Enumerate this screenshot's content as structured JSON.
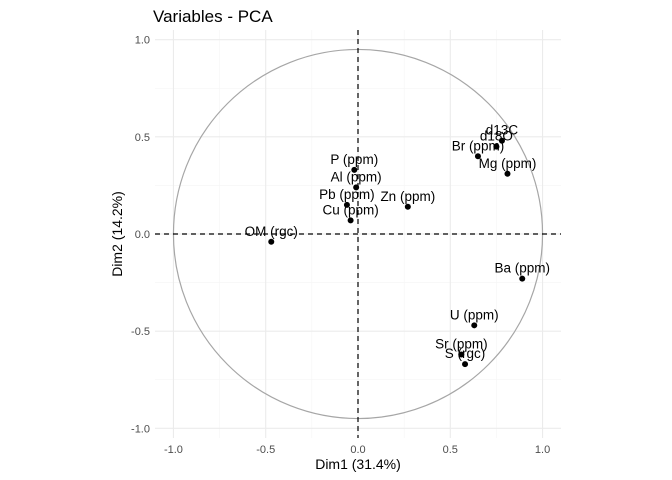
{
  "chart_data": {
    "type": "scatter",
    "title": "Variables - PCA",
    "xlabel": "Dim1 (31.4%)",
    "ylabel": "Dim2 (14.2%)",
    "xlim": [
      -1.1,
      1.1
    ],
    "ylim": [
      -1.05,
      1.05
    ],
    "x_ticks": [
      -1.0,
      -0.5,
      0.0,
      0.5,
      1.0
    ],
    "x_tick_labels": [
      "-1.0",
      "-0.5",
      "0.0",
      "0.5",
      "1.0"
    ],
    "y_ticks": [
      -1.0,
      -0.5,
      0.0,
      0.5,
      1.0
    ],
    "y_tick_labels": [
      "-1.0",
      "-0.5",
      "0.0",
      "0.5",
      "1.0"
    ],
    "grid": true,
    "correlation_circle": true,
    "reference_lines": {
      "x": 0,
      "y": 0,
      "style": "dashed"
    },
    "points": [
      {
        "label": "d13C",
        "x": 0.78,
        "y": 0.48
      },
      {
        "label": "d18O",
        "x": 0.75,
        "y": 0.45
      },
      {
        "label": "Br (ppm)",
        "x": 0.65,
        "y": 0.4
      },
      {
        "label": "Mg (ppm)",
        "x": 0.81,
        "y": 0.31
      },
      {
        "label": "P (ppm)",
        "x": -0.02,
        "y": 0.33
      },
      {
        "label": "Al (ppm)",
        "x": -0.01,
        "y": 0.24
      },
      {
        "label": "Pb (ppm)",
        "x": -0.06,
        "y": 0.15
      },
      {
        "label": "Cu (ppm)",
        "x": -0.04,
        "y": 0.07
      },
      {
        "label": "Zn (ppm)",
        "x": 0.27,
        "y": 0.14
      },
      {
        "label": "OM (rgc)",
        "x": -0.47,
        "y": -0.04
      },
      {
        "label": "Ba (ppm)",
        "x": 0.89,
        "y": -0.23
      },
      {
        "label": "U (ppm)",
        "x": 0.63,
        "y": -0.47
      },
      {
        "label": "Sr (ppm)",
        "x": 0.56,
        "y": -0.62
      },
      {
        "label": "S (rgc)",
        "x": 0.58,
        "y": -0.67
      }
    ],
    "colors": {
      "panel": "#ffffff",
      "grid_major": "#ebebeb",
      "grid_minor": "#f5f5f5",
      "circle": "#a6a6a6",
      "points": "#000000",
      "reference": "#000000"
    }
  }
}
